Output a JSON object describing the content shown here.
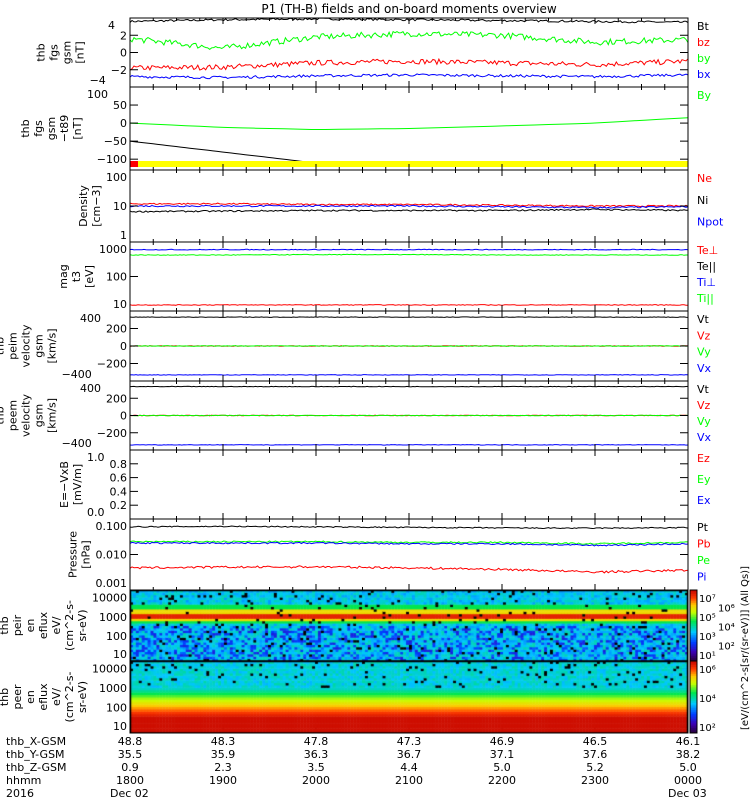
{
  "title": "P1 (TH-B) fields and on-board moments overview",
  "colors": {
    "black": "#000000",
    "red": "#ff0000",
    "green": "#00ff00",
    "blue": "#0000ff",
    "yellow": "#ffff00"
  },
  "chart_data": [
    {
      "type": "line",
      "ylabel": [
        "thb",
        "fgs",
        "gsm",
        "[nT]"
      ],
      "ylim": [
        -4,
        4
      ],
      "log": false,
      "yticks": [
        {
          "v": 4,
          "l": "4"
        },
        {
          "v": 2,
          "l": "2"
        },
        {
          "v": 0,
          "l": "0"
        },
        {
          "v": -2,
          "l": "−2"
        },
        {
          "v": -4,
          "l": "−4"
        }
      ],
      "legend": [
        {
          "name": "Bt",
          "color": "#000000"
        },
        {
          "name": "bz",
          "color": "#ff0000"
        },
        {
          "name": "by",
          "color": "#00ff00"
        },
        {
          "name": "bx",
          "color": "#0000ff"
        }
      ],
      "series": [
        {
          "name": "Bt",
          "color": "#000000",
          "levels": [
            3.6,
            3.8,
            3.9,
            3.8,
            3.7,
            3.6,
            3.5
          ],
          "noise": 0.12
        },
        {
          "name": "bz",
          "color": "#ff0000",
          "levels": [
            -1.8,
            -1.7,
            -1.2,
            -1.0,
            -1.2,
            -1.4,
            -1.0
          ],
          "noise": 0.3
        },
        {
          "name": "by",
          "color": "#00ff00",
          "levels": [
            1.6,
            0.5,
            1.8,
            2.2,
            2.0,
            1.2,
            1.5
          ],
          "noise": 0.35
        },
        {
          "name": "bx",
          "color": "#0000ff",
          "levels": [
            -2.8,
            -2.9,
            -2.7,
            -2.6,
            -2.7,
            -2.8,
            -2.6
          ],
          "noise": 0.15
        }
      ]
    },
    {
      "type": "line",
      "ylabel": [
        "thb",
        "fgs",
        "gsm",
        "−t89",
        "[nT]"
      ],
      "ylim": [
        -130,
        100
      ],
      "log": false,
      "yticks": [
        {
          "v": 100,
          "l": "100"
        },
        {
          "v": 50,
          "l": "50"
        },
        {
          "v": 0,
          "l": "0"
        },
        {
          "v": -50,
          "l": "−50"
        },
        {
          "v": -100,
          "l": "−100"
        }
      ],
      "legend": [
        {
          "name": "By",
          "color": "#00ff00"
        }
      ],
      "series": [
        {
          "name": "By",
          "color": "#00ff00",
          "levels": [
            0,
            -12,
            -18,
            -15,
            -8,
            0,
            15
          ],
          "noise": 0
        },
        {
          "name": "Bmodel",
          "color": "#000000",
          "levels": [
            -50,
            -110
          ],
          "span": [
            0,
            0.33
          ],
          "noise": 0
        }
      ],
      "flagbar": {
        "color": "#ffff00",
        "start_color": "#ff0000"
      }
    },
    {
      "type": "line",
      "ylabel": [
        "Density",
        "[cm−3]"
      ],
      "ylim": [
        1,
        100
      ],
      "log": true,
      "yticks": [
        {
          "v": 100,
          "l": "100"
        },
        {
          "v": 10,
          "l": "10"
        },
        {
          "v": 1,
          "l": "1"
        }
      ],
      "legend": [
        {
          "name": "Ne",
          "color": "#ff0000"
        },
        {
          "name": "Ni",
          "color": "#000000"
        },
        {
          "name": "Npot",
          "color": "#0000ff"
        }
      ],
      "series": [
        {
          "name": "Ne",
          "color": "#ff0000",
          "levels": [
            11.5,
            11.5,
            11,
            11,
            10.5,
            10,
            10
          ],
          "noise": 0.02
        },
        {
          "name": "Npot",
          "color": "#0000ff",
          "levels": [
            10,
            10,
            10,
            10,
            9.5,
            9,
            9.5
          ],
          "noise": 0.02
        },
        {
          "name": "Ni",
          "color": "#000000",
          "levels": [
            7,
            7.2,
            7.5,
            7.5,
            7.5,
            8,
            7.5
          ],
          "noise": 0.02
        }
      ]
    },
    {
      "type": "line",
      "ylabel": [
        "mag",
        "t3",
        "[eV]"
      ],
      "ylim": [
        10,
        1000
      ],
      "log": true,
      "yticks": [
        {
          "v": 1000,
          "l": "1000"
        },
        {
          "v": 100,
          "l": "100"
        },
        {
          "v": 10,
          "l": "10"
        }
      ],
      "legend": [
        {
          "name": "Te⊥",
          "color": "#ff0000"
        },
        {
          "name": "Te||",
          "color": "#000000"
        },
        {
          "name": "Ti⊥",
          "color": "#0000ff"
        },
        {
          "name": "Ti||",
          "color": "#00ff00"
        }
      ],
      "series": [
        {
          "name": "Ti⊥",
          "color": "#0000ff",
          "levels": [
            600,
            600,
            600,
            600,
            600,
            600,
            600
          ],
          "noise": 0.01
        },
        {
          "name": "Ti||",
          "color": "#00ff00",
          "levels": [
            420,
            420,
            430,
            430,
            420,
            420,
            420
          ],
          "noise": 0.01
        },
        {
          "name": "Te⊥",
          "color": "#ff0000",
          "levels": [
            15,
            15,
            15,
            15,
            15,
            15,
            15
          ],
          "noise": 0.01
        }
      ]
    },
    {
      "type": "line",
      "ylabel": [
        "thb",
        "peim",
        "velocity",
        "gsm",
        "[km/s]"
      ],
      "ylim": [
        -400,
        400
      ],
      "log": false,
      "yticks": [
        {
          "v": 400,
          "l": "400"
        },
        {
          "v": 200,
          "l": "200"
        },
        {
          "v": 0,
          "l": "0"
        },
        {
          "v": -200,
          "l": "−200"
        },
        {
          "v": -400,
          "l": "−400"
        }
      ],
      "legend": [
        {
          "name": "Vt",
          "color": "#000000"
        },
        {
          "name": "Vz",
          "color": "#ff0000"
        },
        {
          "name": "Vy",
          "color": "#00ff00"
        },
        {
          "name": "Vx",
          "color": "#0000ff"
        }
      ],
      "series": [
        {
          "name": "Vt",
          "color": "#000000",
          "levels": [
            330,
            330,
            330,
            330,
            330,
            330,
            330
          ],
          "noise": 3
        },
        {
          "name": "Vz",
          "color": "#ff0000",
          "levels": [
            0,
            0,
            0,
            0,
            0,
            0,
            0
          ],
          "noise": 4
        },
        {
          "name": "Vy",
          "color": "#00ff00",
          "levels": [
            0,
            0,
            0,
            0,
            0,
            0,
            0
          ],
          "noise": 3
        },
        {
          "name": "Vx",
          "color": "#0000ff",
          "levels": [
            -330,
            -330,
            -330,
            -330,
            -330,
            -330,
            -330
          ],
          "noise": 3
        }
      ]
    },
    {
      "type": "line",
      "ylabel": [
        "thb",
        "peem",
        "velocity",
        "gsm",
        "[km/s]"
      ],
      "ylim": [
        -400,
        400
      ],
      "log": false,
      "yticks": [
        {
          "v": 400,
          "l": "400"
        },
        {
          "v": 200,
          "l": "200"
        },
        {
          "v": 0,
          "l": "0"
        },
        {
          "v": -200,
          "l": "−200"
        },
        {
          "v": -400,
          "l": "−400"
        }
      ],
      "legend": [
        {
          "name": "Vt",
          "color": "#000000"
        },
        {
          "name": "Vz",
          "color": "#ff0000"
        },
        {
          "name": "Vy",
          "color": "#00ff00"
        },
        {
          "name": "Vx",
          "color": "#0000ff"
        }
      ],
      "series": [
        {
          "name": "Vt",
          "color": "#000000",
          "levels": [
            335,
            335,
            335,
            335,
            335,
            335,
            335
          ],
          "noise": 3
        },
        {
          "name": "Vz",
          "color": "#ff0000",
          "levels": [
            0,
            0,
            0,
            0,
            0,
            0,
            0
          ],
          "noise": 4
        },
        {
          "name": "Vy",
          "color": "#00ff00",
          "levels": [
            0,
            0,
            0,
            0,
            0,
            0,
            0
          ],
          "noise": 3
        },
        {
          "name": "Vx",
          "color": "#0000ff",
          "levels": [
            -340,
            -340,
            -340,
            -340,
            -340,
            -340,
            -340
          ],
          "noise": 3
        }
      ]
    },
    {
      "type": "line",
      "ylabel": [
        "E=−VxB",
        "[mV/m]"
      ],
      "ylim": [
        0,
        1
      ],
      "log": false,
      "yticks": [
        {
          "v": 1,
          "l": "1.0"
        },
        {
          "v": 0.8,
          "l": "0.8"
        },
        {
          "v": 0.6,
          "l": "0.6"
        },
        {
          "v": 0.4,
          "l": "0.4"
        },
        {
          "v": 0.2,
          "l": "0.2"
        },
        {
          "v": 0,
          "l": "0.0"
        }
      ],
      "legend": [
        {
          "name": "Ez",
          "color": "#ff0000"
        },
        {
          "name": "Ey",
          "color": "#00ff00"
        },
        {
          "name": "Ex",
          "color": "#0000ff"
        }
      ],
      "series": []
    },
    {
      "type": "line",
      "ylabel": [
        "Pressure",
        "[nPa]"
      ],
      "ylim": [
        0.001,
        0.1
      ],
      "log": true,
      "yticks": [
        {
          "v": 0.1,
          "l": "0.100"
        },
        {
          "v": 0.01,
          "l": "0.010"
        },
        {
          "v": 0.001,
          "l": "0.001"
        }
      ],
      "legend": [
        {
          "name": "Pt",
          "color": "#000000"
        },
        {
          "name": "Pb",
          "color": "#ff0000"
        },
        {
          "name": "Pe",
          "color": "#00ff00"
        },
        {
          "name": "Pi",
          "color": "#0000ff"
        }
      ],
      "series": [
        {
          "name": "Pt",
          "color": "#000000",
          "levels": [
            0.06,
            0.062,
            0.06,
            0.058,
            0.056,
            0.055,
            0.057
          ],
          "noise": 0.015
        },
        {
          "name": "Pe",
          "color": "#00ff00",
          "levels": [
            0.023,
            0.023,
            0.023,
            0.022,
            0.022,
            0.02,
            0.022
          ],
          "noise": 0.02
        },
        {
          "name": "Pi",
          "color": "#0000ff",
          "levels": [
            0.021,
            0.021,
            0.021,
            0.02,
            0.02,
            0.018,
            0.02
          ],
          "noise": 0.02
        },
        {
          "name": "Pb",
          "color": "#ff0000",
          "levels": [
            0.0042,
            0.0044,
            0.0045,
            0.0042,
            0.0038,
            0.0032,
            0.0036
          ],
          "noise": 0.03
        }
      ]
    },
    {
      "type": "heatmap",
      "ylabel": [
        "thb",
        "peir",
        "en",
        "eflux",
        "eV/",
        "(cm^2-s-",
        "sr-eV)"
      ],
      "ylim": [
        5,
        25000
      ],
      "log": true,
      "yticks": [
        {
          "v": 10000,
          "l": "10000"
        },
        {
          "v": 1000,
          "l": "1000"
        },
        {
          "v": 100,
          "l": "100"
        },
        {
          "v": 10,
          "l": "10"
        }
      ],
      "colorbar": {
        "ticks": [
          "10⁷",
          "10⁶",
          "10⁵",
          "10⁴",
          "10³",
          "10²",
          "10¹"
        ],
        "range_exp": [
          1,
          7
        ]
      },
      "kind": "ion"
    },
    {
      "type": "heatmap",
      "ylabel": [
        "thb",
        "peer",
        "en",
        "eflux",
        "eV/",
        "(cm^2-s-",
        "sr-eV)"
      ],
      "ylim": [
        5,
        25000
      ],
      "log": true,
      "yticks": [
        {
          "v": 10000,
          "l": "10000"
        },
        {
          "v": 1000,
          "l": "1000"
        },
        {
          "v": 100,
          "l": "100"
        },
        {
          "v": 10,
          "l": "10"
        }
      ],
      "colorbar": {
        "ticks": [
          "10⁶",
          "10⁴",
          "10²"
        ],
        "range_exp": [
          1,
          7.5
        ]
      },
      "kind": "electron"
    }
  ],
  "colorbar_label": "[eV/(cm^2-s[sr/(sr-eV)]] (All Qs)]",
  "xaxis": {
    "row_labels": [
      "thb_X-GSM",
      "thb_Y-GSM",
      "thb_Z-GSM",
      "hhmm",
      "2016"
    ],
    "ticks": [
      {
        "x": "48.8",
        "y": "35.5",
        "z": "0.9",
        "hhmm": "1800",
        "date": "Dec 02"
      },
      {
        "x": "48.3",
        "y": "35.9",
        "z": "2.3",
        "hhmm": "1900",
        "date": ""
      },
      {
        "x": "47.8",
        "y": "36.3",
        "z": "3.5",
        "hhmm": "2000",
        "date": ""
      },
      {
        "x": "47.3",
        "y": "36.7",
        "z": "4.4",
        "hhmm": "2100",
        "date": ""
      },
      {
        "x": "46.9",
        "y": "37.1",
        "z": "5.0",
        "hhmm": "2200",
        "date": ""
      },
      {
        "x": "46.5",
        "y": "37.6",
        "z": "5.2",
        "hhmm": "2300",
        "date": ""
      },
      {
        "x": "46.1",
        "y": "38.2",
        "z": "5.0",
        "hhmm": "0000",
        "date": "Dec 03"
      }
    ]
  }
}
